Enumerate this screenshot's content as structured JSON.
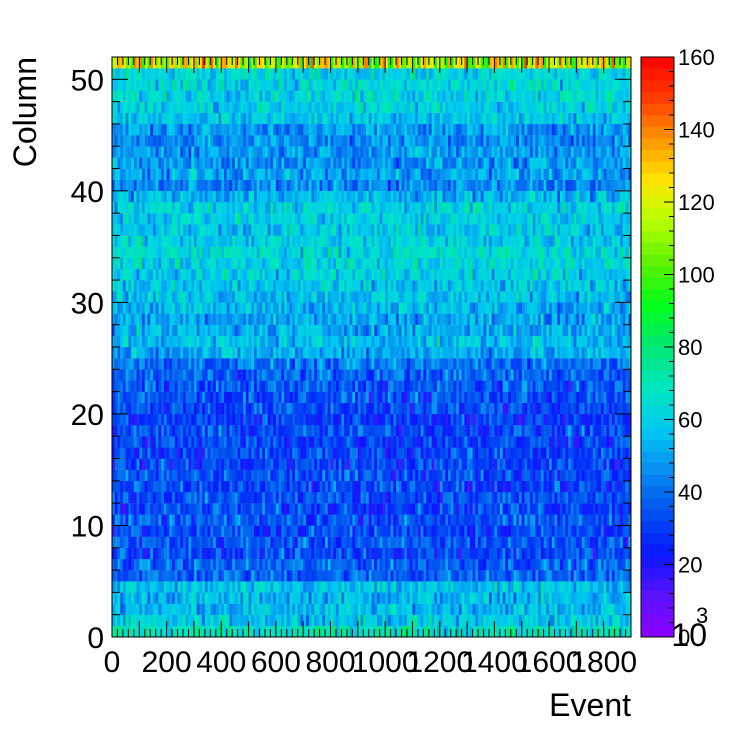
{
  "chart_data": {
    "type": "heatmap",
    "title": "",
    "xlabel": "Event",
    "ylabel": "Column",
    "x_range": [
      0,
      1900
    ],
    "y_range": [
      0,
      52
    ],
    "x_bins": 190,
    "y_bins": 52,
    "x_ticks": [
      "0",
      "200",
      "400",
      "600",
      "800",
      "1000",
      "1200",
      "1400",
      "1600",
      "1800"
    ],
    "y_ticks": [
      "0",
      "10",
      "20",
      "30",
      "40",
      "50"
    ],
    "x_exponent_label": "10",
    "x_exponent_power": "3",
    "colorbar": {
      "range": [
        0,
        160
      ],
      "ticks": [
        "0",
        "20",
        "40",
        "60",
        "80",
        "100",
        "120",
        "140",
        "160"
      ],
      "palette": [
        "#8e00ff",
        "#5a12ff",
        "#0a16ff",
        "#0050f0",
        "#0a8cf0",
        "#00c8f0",
        "#00e6c2",
        "#00e676",
        "#00ff1a",
        "#5af000",
        "#b4ff00",
        "#ffe600",
        "#ff9600",
        "#ff3c00",
        "#ff0000"
      ]
    },
    "row_mean_counts": [
      68,
      58,
      55,
      54,
      55,
      38,
      38,
      33,
      35,
      33,
      35,
      33,
      34,
      31,
      34,
      31,
      32,
      32,
      33,
      30,
      33,
      34,
      35,
      38,
      41,
      52,
      56,
      52,
      51,
      54,
      57,
      56,
      60,
      62,
      64,
      60,
      58,
      60,
      61,
      54,
      44,
      50,
      47,
      49,
      46,
      48,
      58,
      60,
      63,
      62,
      61,
      118
    ],
    "grid": false,
    "legend": "none"
  }
}
